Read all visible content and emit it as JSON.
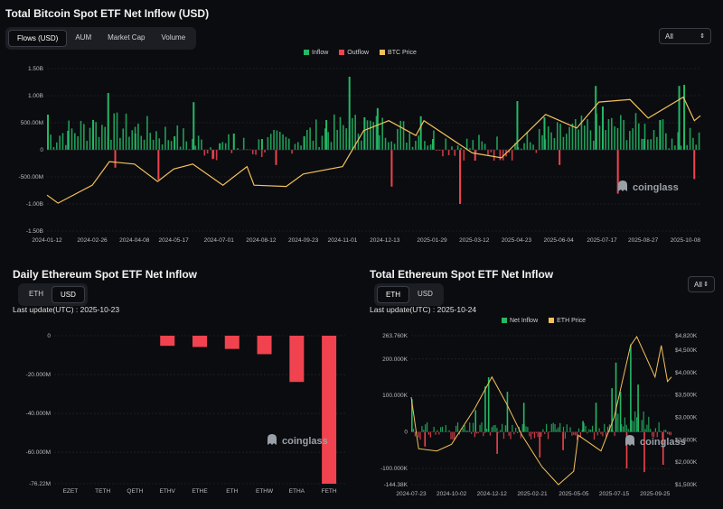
{
  "btc": {
    "title": "Total Bitcoin Spot ETF Net Inflow (USD)",
    "tabs": [
      "Flows (USD)",
      "AUM",
      "Market Cap",
      "Volume"
    ],
    "active_tab": 0,
    "range": "All",
    "legend": [
      "Inflow",
      "Outflow",
      "BTC Price"
    ],
    "watermark": "coinglass"
  },
  "eth_daily": {
    "title": "Daily Ethereum Spot ETF Net Inflow",
    "toggle": [
      "ETH",
      "USD"
    ],
    "active": 1,
    "last_update": "Last update(UTC) : 2025-10-23",
    "watermark": "coinglass"
  },
  "eth_total": {
    "title": "Total Ethereum Spot ETF Net Inflow",
    "toggle": [
      "ETH",
      "USD"
    ],
    "active": 0,
    "last_update": "Last update(UTC) : 2025-10-24",
    "range": "All",
    "legend": [
      "Net Inflow",
      "ETH Price"
    ],
    "watermark": "coinglass"
  },
  "colors": {
    "inflow": "#25b866",
    "outflow": "#f0434f",
    "price": "#f3c15c",
    "bg": "#0b0c0f",
    "grid": "#2a2d33"
  },
  "chart_data": [
    {
      "type": "bar",
      "title": "Total Bitcoin Spot ETF Net Inflow (USD)",
      "ylim": [
        -1.5,
        1.5
      ],
      "y_unit": "B USD",
      "y_ticks": [
        "1.50B",
        "1.00B",
        "500.00M",
        "0",
        "-500.00M",
        "-1.00B",
        "-1.50B"
      ],
      "x_ticks": [
        "2024-01-12",
        "2024-02-26",
        "2024-04-08",
        "2024-05-17",
        "2024-07-01",
        "2024-08-12",
        "2024-09-23",
        "2024-11-01",
        "2024-12-13",
        "2025-01-29",
        "2025-03-12",
        "2025-04-23",
        "2025-06-04",
        "2025-07-17",
        "2025-08-27",
        "2025-10-08"
      ],
      "grid": true,
      "legend_position": "top-center",
      "flow_series": [
        {
          "date": "2024-01-12",
          "value": 0.65
        },
        {
          "date": "2024-02-01",
          "value": 0.35
        },
        {
          "date": "2024-02-26",
          "value": 0.55
        },
        {
          "date": "2024-03-12",
          "value": 1.05
        },
        {
          "date": "2024-03-19",
          "value": -0.33
        },
        {
          "date": "2024-04-08",
          "value": 0.3
        },
        {
          "date": "2024-05-01",
          "value": -0.55
        },
        {
          "date": "2024-05-17",
          "value": 0.25
        },
        {
          "date": "2024-06-05",
          "value": 0.88
        },
        {
          "date": "2024-06-24",
          "value": -0.17
        },
        {
          "date": "2024-07-01",
          "value": 0.12
        },
        {
          "date": "2024-07-15",
          "value": 0.3
        },
        {
          "date": "2024-08-12",
          "value": 0.2
        },
        {
          "date": "2024-08-26",
          "value": -0.28
        },
        {
          "date": "2024-09-23",
          "value": 0.25
        },
        {
          "date": "2024-10-15",
          "value": 0.55
        },
        {
          "date": "2024-11-07",
          "value": 1.35
        },
        {
          "date": "2024-11-22",
          "value": 0.6
        },
        {
          "date": "2024-12-05",
          "value": 0.77
        },
        {
          "date": "2024-12-19",
          "value": -0.68
        },
        {
          "date": "2025-01-17",
          "value": 0.62
        },
        {
          "date": "2025-01-29",
          "value": 0.2
        },
        {
          "date": "2025-02-25",
          "value": -1.0
        },
        {
          "date": "2025-03-12",
          "value": -0.2
        },
        {
          "date": "2025-04-23",
          "value": 0.9
        },
        {
          "date": "2025-05-20",
          "value": 0.6
        },
        {
          "date": "2025-06-04",
          "value": -0.28
        },
        {
          "date": "2025-07-10",
          "value": 1.18
        },
        {
          "date": "2025-07-17",
          "value": 0.8
        },
        {
          "date": "2025-08-01",
          "value": -0.81
        },
        {
          "date": "2025-08-27",
          "value": 0.2
        },
        {
          "date": "2025-09-12",
          "value": 0.55
        },
        {
          "date": "2025-10-01",
          "value": 1.18
        },
        {
          "date": "2025-10-06",
          "value": 1.2
        },
        {
          "date": "2025-10-16",
          "value": -0.54
        }
      ],
      "price_series_name": "BTC Price",
      "price_series": [
        {
          "date": "2024-01-12",
          "value": 46000
        },
        {
          "date": "2024-01-23",
          "value": 39500
        },
        {
          "date": "2024-02-26",
          "value": 54000
        },
        {
          "date": "2024-03-14",
          "value": 73000
        },
        {
          "date": "2024-04-08",
          "value": 71000
        },
        {
          "date": "2024-05-01",
          "value": 57000
        },
        {
          "date": "2024-05-17",
          "value": 67000
        },
        {
          "date": "2024-06-05",
          "value": 71000
        },
        {
          "date": "2024-07-05",
          "value": 54000
        },
        {
          "date": "2024-07-29",
          "value": 69000
        },
        {
          "date": "2024-08-05",
          "value": 54000
        },
        {
          "date": "2024-09-06",
          "value": 53000
        },
        {
          "date": "2024-09-23",
          "value": 63000
        },
        {
          "date": "2024-11-01",
          "value": 69000
        },
        {
          "date": "2024-11-22",
          "value": 98000
        },
        {
          "date": "2024-12-17",
          "value": 106000
        },
        {
          "date": "2025-01-13",
          "value": 94000
        },
        {
          "date": "2025-01-21",
          "value": 106000
        },
        {
          "date": "2025-03-10",
          "value": 80000
        },
        {
          "date": "2025-04-08",
          "value": 76000
        },
        {
          "date": "2025-05-22",
          "value": 111000
        },
        {
          "date": "2025-06-22",
          "value": 100000
        },
        {
          "date": "2025-07-14",
          "value": 121000
        },
        {
          "date": "2025-08-14",
          "value": 123000
        },
        {
          "date": "2025-09-01",
          "value": 108000
        },
        {
          "date": "2025-10-06",
          "value": 125000
        },
        {
          "date": "2025-10-17",
          "value": 106000
        },
        {
          "date": "2025-10-23",
          "value": 110000
        }
      ]
    },
    {
      "type": "bar",
      "title": "Daily Ethereum Spot ETF Net Inflow",
      "categories": [
        "EZET",
        "TETH",
        "QETH",
        "ETHV",
        "ETHE",
        "ETH",
        "ETHW",
        "ETHA",
        "FETH"
      ],
      "values": [
        0,
        0,
        0,
        -5.2,
        -5.8,
        -6.8,
        -9.5,
        -23.8,
        -76.22
      ],
      "unit": "M USD",
      "ylim": [
        -76.22,
        0
      ],
      "y_ticks": [
        "0",
        "-20.000M",
        "-40.000M",
        "-60.000M",
        "-76.22M"
      ],
      "grid": true
    },
    {
      "type": "bar",
      "title": "Total Ethereum Spot ETF Net Inflow",
      "ylim": [
        -144.38,
        263.76
      ],
      "y_unit": "K ETH",
      "y_ticks": [
        "263.760K",
        "200.000K",
        "100.000K",
        "0",
        "-100.000K",
        "-144.38K"
      ],
      "y2_ticks": [
        "$4,820K",
        "$4,500K",
        "$4,000K",
        "$3,500K",
        "$3,000K",
        "$2,500K",
        "$2,000K",
        "$1,500K"
      ],
      "y2lim": [
        1500,
        4820
      ],
      "x_ticks": [
        "2024-07-23",
        "2024-10-02",
        "2024-12-12",
        "2025-02-21",
        "2025-05-05",
        "2025-07-15",
        "2025-09-25"
      ],
      "grid": true,
      "legend_position": "top-left",
      "flow_series": [
        {
          "date": "2024-07-23",
          "value": 90
        },
        {
          "date": "2024-08-15",
          "value": -40
        },
        {
          "date": "2024-11-12",
          "value": 60
        },
        {
          "date": "2024-11-29",
          "value": 125
        },
        {
          "date": "2024-12-05",
          "value": 150
        },
        {
          "date": "2024-12-20",
          "value": -60
        },
        {
          "date": "2025-01-07",
          "value": 110
        },
        {
          "date": "2025-02-05",
          "value": 80
        },
        {
          "date": "2025-03-05",
          "value": -70
        },
        {
          "date": "2025-04-15",
          "value": -50
        },
        {
          "date": "2025-05-20",
          "value": 30
        },
        {
          "date": "2025-06-12",
          "value": 80
        },
        {
          "date": "2025-07-10",
          "value": 120
        },
        {
          "date": "2025-07-17",
          "value": 190
        },
        {
          "date": "2025-07-25",
          "value": 110
        },
        {
          "date": "2025-08-05",
          "value": -100
        },
        {
          "date": "2025-08-12",
          "value": 240
        },
        {
          "date": "2025-08-25",
          "value": 130
        },
        {
          "date": "2025-09-05",
          "value": -110
        },
        {
          "date": "2025-10-08",
          "value": -90
        }
      ],
      "price_series_name": "ETH Price",
      "price_series": [
        {
          "date": "2024-07-23",
          "value": 3450
        },
        {
          "date": "2024-08-05",
          "value": 2300
        },
        {
          "date": "2024-09-06",
          "value": 2250
        },
        {
          "date": "2024-10-02",
          "value": 2400
        },
        {
          "date": "2024-11-12",
          "value": 3200
        },
        {
          "date": "2024-12-12",
          "value": 3900
        },
        {
          "date": "2025-01-07",
          "value": 3300
        },
        {
          "date": "2025-02-03",
          "value": 2600
        },
        {
          "date": "2025-03-10",
          "value": 1900
        },
        {
          "date": "2025-04-08",
          "value": 1500
        },
        {
          "date": "2025-05-05",
          "value": 1800
        },
        {
          "date": "2025-05-13",
          "value": 2600
        },
        {
          "date": "2025-06-22",
          "value": 2250
        },
        {
          "date": "2025-07-15",
          "value": 3000
        },
        {
          "date": "2025-08-13",
          "value": 4600
        },
        {
          "date": "2025-08-24",
          "value": 4800
        },
        {
          "date": "2025-09-25",
          "value": 3900
        },
        {
          "date": "2025-10-06",
          "value": 4600
        },
        {
          "date": "2025-10-17",
          "value": 3800
        },
        {
          "date": "2025-10-24",
          "value": 3900
        }
      ]
    }
  ]
}
